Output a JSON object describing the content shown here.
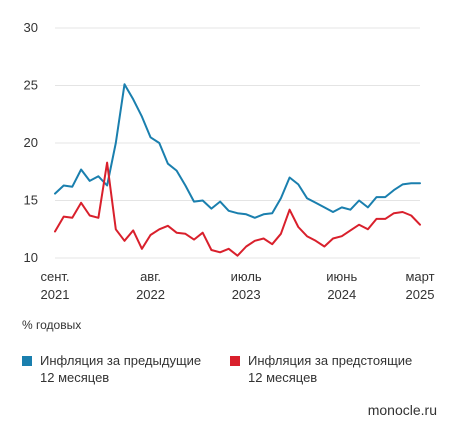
{
  "chart_data": {
    "type": "line",
    "ylabel": "% годовых",
    "ylim": [
      10,
      30
    ],
    "yticks": [
      10,
      15,
      20,
      25,
      30
    ],
    "xlim": [
      2021.667,
      2025.167
    ],
    "xticks": [
      {
        "x": 2021.667,
        "line1": "сент.",
        "line2": "2021"
      },
      {
        "x": 2022.583,
        "line1": "авг.",
        "line2": "2022"
      },
      {
        "x": 2023.5,
        "line1": "июль",
        "line2": "2023"
      },
      {
        "x": 2024.417,
        "line1": "июнь",
        "line2": "2024"
      },
      {
        "x": 2025.167,
        "line1": "март",
        "line2": "2025"
      }
    ],
    "grid": true,
    "legend_position": "bottom",
    "series": [
      {
        "name": "Инфляция за предыдущие 12 месяцев",
        "color": "#1a7fae",
        "points": [
          [
            2021.667,
            15.6
          ],
          [
            2021.75,
            16.3
          ],
          [
            2021.833,
            16.2
          ],
          [
            2021.917,
            17.7
          ],
          [
            2022.0,
            16.7
          ],
          [
            2022.083,
            17.1
          ],
          [
            2022.167,
            16.3
          ],
          [
            2022.25,
            20.0
          ],
          [
            2022.333,
            25.1
          ],
          [
            2022.417,
            23.8
          ],
          [
            2022.5,
            22.3
          ],
          [
            2022.583,
            20.5
          ],
          [
            2022.667,
            20.0
          ],
          [
            2022.75,
            18.2
          ],
          [
            2022.833,
            17.6
          ],
          [
            2022.917,
            16.3
          ],
          [
            2023.0,
            14.9
          ],
          [
            2023.083,
            15.0
          ],
          [
            2023.167,
            14.3
          ],
          [
            2023.25,
            14.9
          ],
          [
            2023.333,
            14.1
          ],
          [
            2023.417,
            13.9
          ],
          [
            2023.5,
            13.8
          ],
          [
            2023.583,
            13.5
          ],
          [
            2023.667,
            13.8
          ],
          [
            2023.75,
            13.9
          ],
          [
            2023.833,
            15.2
          ],
          [
            2023.917,
            17.0
          ],
          [
            2024.0,
            16.4
          ],
          [
            2024.083,
            15.2
          ],
          [
            2024.167,
            14.8
          ],
          [
            2024.25,
            14.4
          ],
          [
            2024.333,
            14.0
          ],
          [
            2024.417,
            14.4
          ],
          [
            2024.5,
            14.2
          ],
          [
            2024.583,
            15.0
          ],
          [
            2024.667,
            14.4
          ],
          [
            2024.75,
            15.3
          ],
          [
            2024.833,
            15.3
          ],
          [
            2024.917,
            15.9
          ],
          [
            2025.0,
            16.4
          ],
          [
            2025.083,
            16.5
          ],
          [
            2025.167,
            16.5
          ]
        ]
      },
      {
        "name": "Инфляция за предстоящие 12 месяцев",
        "color": "#d9202c",
        "points": [
          [
            2021.667,
            12.3
          ],
          [
            2021.75,
            13.6
          ],
          [
            2021.833,
            13.5
          ],
          [
            2021.917,
            14.8
          ],
          [
            2022.0,
            13.7
          ],
          [
            2022.083,
            13.5
          ],
          [
            2022.167,
            18.3
          ],
          [
            2022.25,
            12.5
          ],
          [
            2022.333,
            11.5
          ],
          [
            2022.417,
            12.4
          ],
          [
            2022.5,
            10.8
          ],
          [
            2022.583,
            12.0
          ],
          [
            2022.667,
            12.5
          ],
          [
            2022.75,
            12.8
          ],
          [
            2022.833,
            12.2
          ],
          [
            2022.917,
            12.1
          ],
          [
            2023.0,
            11.6
          ],
          [
            2023.083,
            12.2
          ],
          [
            2023.167,
            10.7
          ],
          [
            2023.25,
            10.5
          ],
          [
            2023.333,
            10.8
          ],
          [
            2023.417,
            10.2
          ],
          [
            2023.5,
            11.0
          ],
          [
            2023.583,
            11.5
          ],
          [
            2023.667,
            11.7
          ],
          [
            2023.75,
            11.2
          ],
          [
            2023.833,
            12.1
          ],
          [
            2023.917,
            14.2
          ],
          [
            2024.0,
            12.7
          ],
          [
            2024.083,
            11.9
          ],
          [
            2024.167,
            11.5
          ],
          [
            2024.25,
            11.0
          ],
          [
            2024.333,
            11.7
          ],
          [
            2024.417,
            11.9
          ],
          [
            2024.5,
            12.4
          ],
          [
            2024.583,
            12.9
          ],
          [
            2024.667,
            12.5
          ],
          [
            2024.75,
            13.4
          ],
          [
            2024.833,
            13.4
          ],
          [
            2024.917,
            13.9
          ],
          [
            2025.0,
            14.0
          ],
          [
            2025.083,
            13.7
          ],
          [
            2025.167,
            12.9
          ]
        ]
      }
    ]
  },
  "legend": {
    "item1": {
      "line1": "Инфляция за предыдущие",
      "line2": "12 месяцев"
    },
    "item2": {
      "line1": "Инфляция за предстоящие",
      "line2": "12 месяцев"
    }
  },
  "source": "monocle.ru"
}
